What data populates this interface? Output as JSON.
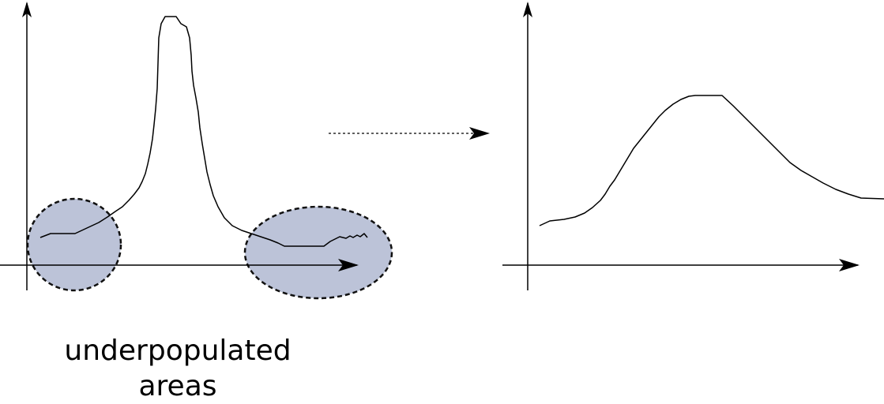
{
  "caption": {
    "line1": "underpopulated",
    "line2": "areas"
  },
  "colors": {
    "stroke": "#000000",
    "highlight_fill": "#bcc3d8",
    "highlight_stroke": "#111111",
    "background": "#ffffff"
  },
  "icons": {
    "transform_arrow": "dotted-right-arrow",
    "axis_arrowheads": "filled-arrowheads"
  }
}
